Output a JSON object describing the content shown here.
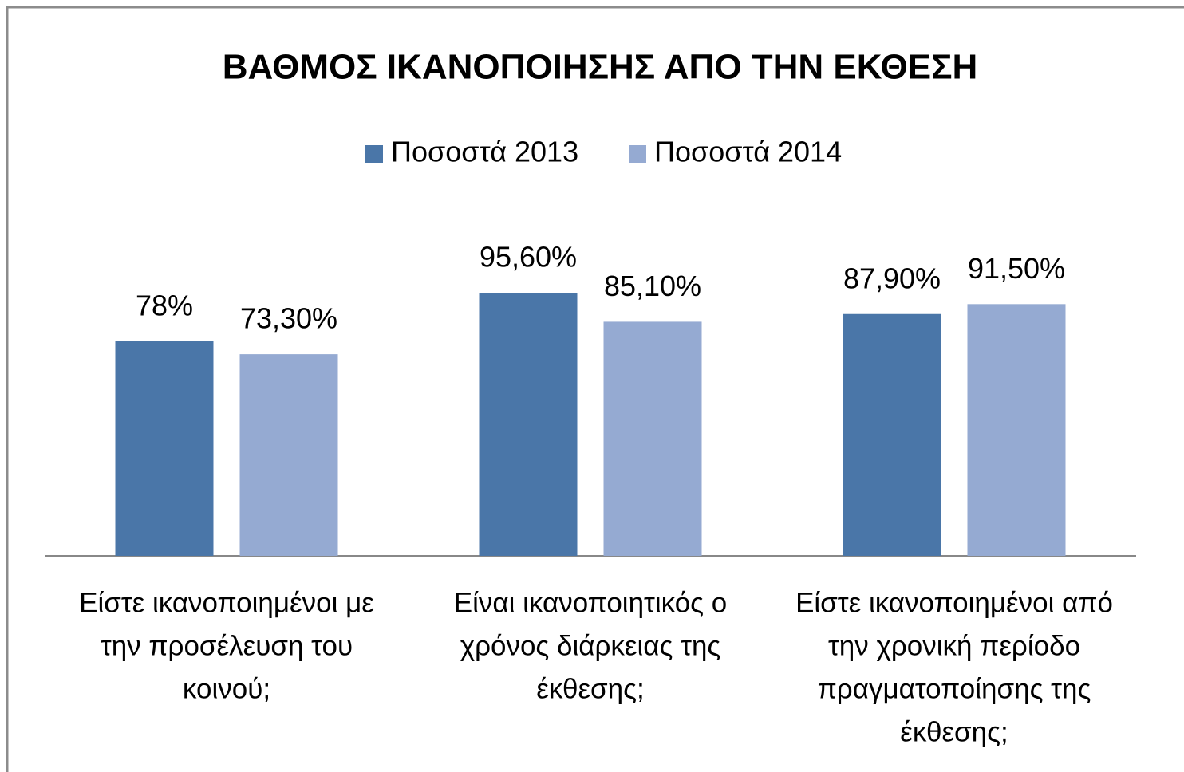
{
  "chart_data": {
    "type": "bar",
    "title": "ΒΑΘΜΟΣ ΙΚΑΝΟΠΟΙΗΣΗΣ ΑΠΟ ΤΗΝ ΕΚΘΕΣΗ",
    "categories": [
      [
        "Είστε ικανοποιημένοι με",
        "την προσέλευση του",
        "κοινού;"
      ],
      [
        "Είναι ικανοποιητικός ο",
        "χρόνος διάρκειας της",
        "έκθεσης;"
      ],
      [
        "Είστε ικανοποιημένοι από",
        "την χρονική περίοδο",
        "πραγματοποίησης  της",
        "έκθεσης;"
      ]
    ],
    "series": [
      {
        "name": "Ποσοστά 2013",
        "color": "#4a76a8",
        "values": [
          78,
          95.6,
          87.9
        ],
        "value_labels": [
          "78%",
          "95,60%",
          "87,90%"
        ]
      },
      {
        "name": "Ποσοστά 2014",
        "color": "#95aad2",
        "values": [
          73.3,
          85.1,
          91.5
        ],
        "value_labels": [
          "73,30%",
          "85,10%",
          "91,50%"
        ]
      }
    ],
    "ylim": [
      0,
      100
    ],
    "legend": "top"
  }
}
